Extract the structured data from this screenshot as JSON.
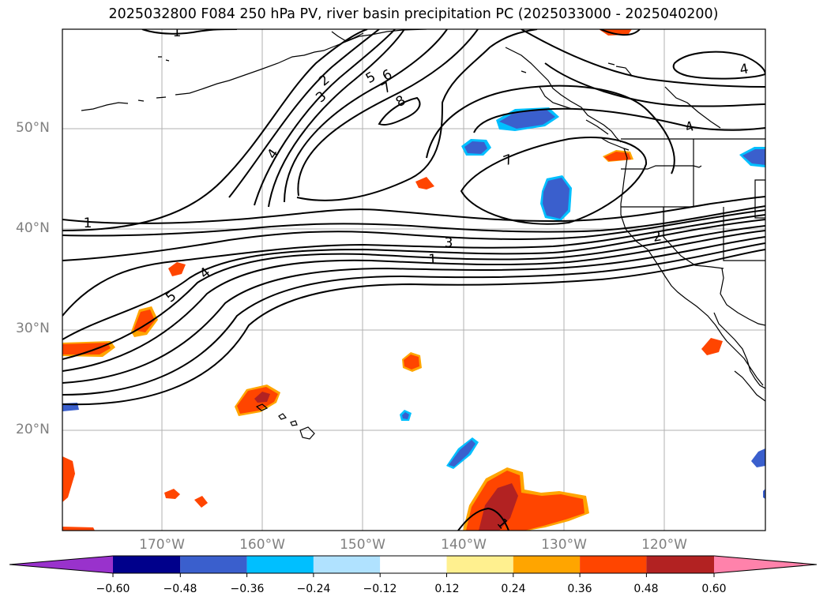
{
  "title": "2025032800 F084 250 hPa PV, river basin precipitation PC (2025033000 - 2025040200)",
  "latitude_labels": [
    "50°N",
    "40°N",
    "30°N",
    "20°N"
  ],
  "longitude_labels": [
    "170°W",
    "160°W",
    "150°W",
    "140°W",
    "130°W",
    "120°W"
  ],
  "contour_labels": [
    "1",
    "1",
    "1",
    "1",
    "2",
    "2",
    "3",
    "3",
    "4",
    "4",
    "4",
    "4",
    "5",
    "5",
    "6",
    "7",
    "7",
    "8"
  ],
  "colorbar": {
    "ticks": [
      "−0.60",
      "−0.48",
      "−0.36",
      "−0.24",
      "−0.12",
      "0.12",
      "0.24",
      "0.36",
      "0.48",
      "0.60"
    ],
    "colors": [
      "#9932cc",
      "#00008b",
      "#3a5fcd",
      "#00bfff",
      "#b0e2ff",
      "#ffffff",
      "#fff08f",
      "#ffa500",
      "#ff4500",
      "#b22222",
      "#ff82ab"
    ]
  }
}
